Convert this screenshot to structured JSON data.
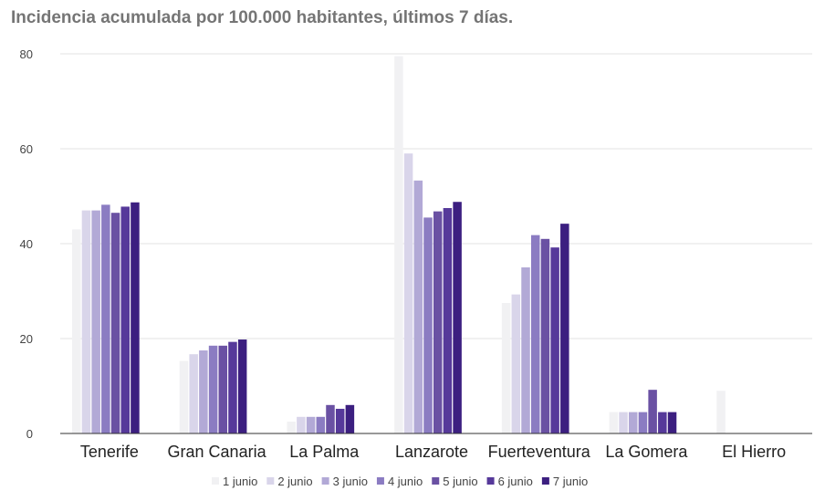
{
  "chart_data": {
    "type": "bar",
    "title": "Incidencia acumulada por 100.000 habitantes, últimos 7 días.",
    "xlabel": "",
    "ylabel": "",
    "ylim": [
      0,
      80
    ],
    "yticks": [
      0,
      20,
      40,
      60,
      80
    ],
    "grid": true,
    "legend_position": "bottom",
    "categories": [
      "Tenerife",
      "Gran Canaria",
      "La Palma",
      "Lanzarote",
      "Fuerteventura",
      "La Gomera",
      "El Hierro"
    ],
    "series": [
      {
        "name": "1 junio",
        "color": "#f1f1f3",
        "values": [
          43,
          15.3,
          2.5,
          79.5,
          27.5,
          4.5,
          9
        ]
      },
      {
        "name": "2 junio",
        "color": "#d9d5ea",
        "values": [
          47,
          16.7,
          3.5,
          59,
          29.3,
          4.5,
          0
        ]
      },
      {
        "name": "3 junio",
        "color": "#b2a9d6",
        "values": [
          47,
          17.5,
          3.5,
          53.3,
          35,
          4.5,
          0
        ]
      },
      {
        "name": "4 junio",
        "color": "#8b7cc2",
        "values": [
          48.2,
          18.5,
          3.5,
          45.5,
          41.8,
          4.5,
          0
        ]
      },
      {
        "name": "5 junio",
        "color": "#6a51a3",
        "values": [
          46.5,
          18.5,
          6,
          46.8,
          41,
          9.2,
          0
        ]
      },
      {
        "name": "6 junio",
        "color": "#56399a",
        "values": [
          47.8,
          19.3,
          5.2,
          47.5,
          39.2,
          4.5,
          0
        ]
      },
      {
        "name": "7 junio",
        "color": "#3c1f80",
        "values": [
          48.7,
          19.8,
          6,
          48.8,
          44.2,
          4.5,
          0
        ]
      }
    ]
  }
}
